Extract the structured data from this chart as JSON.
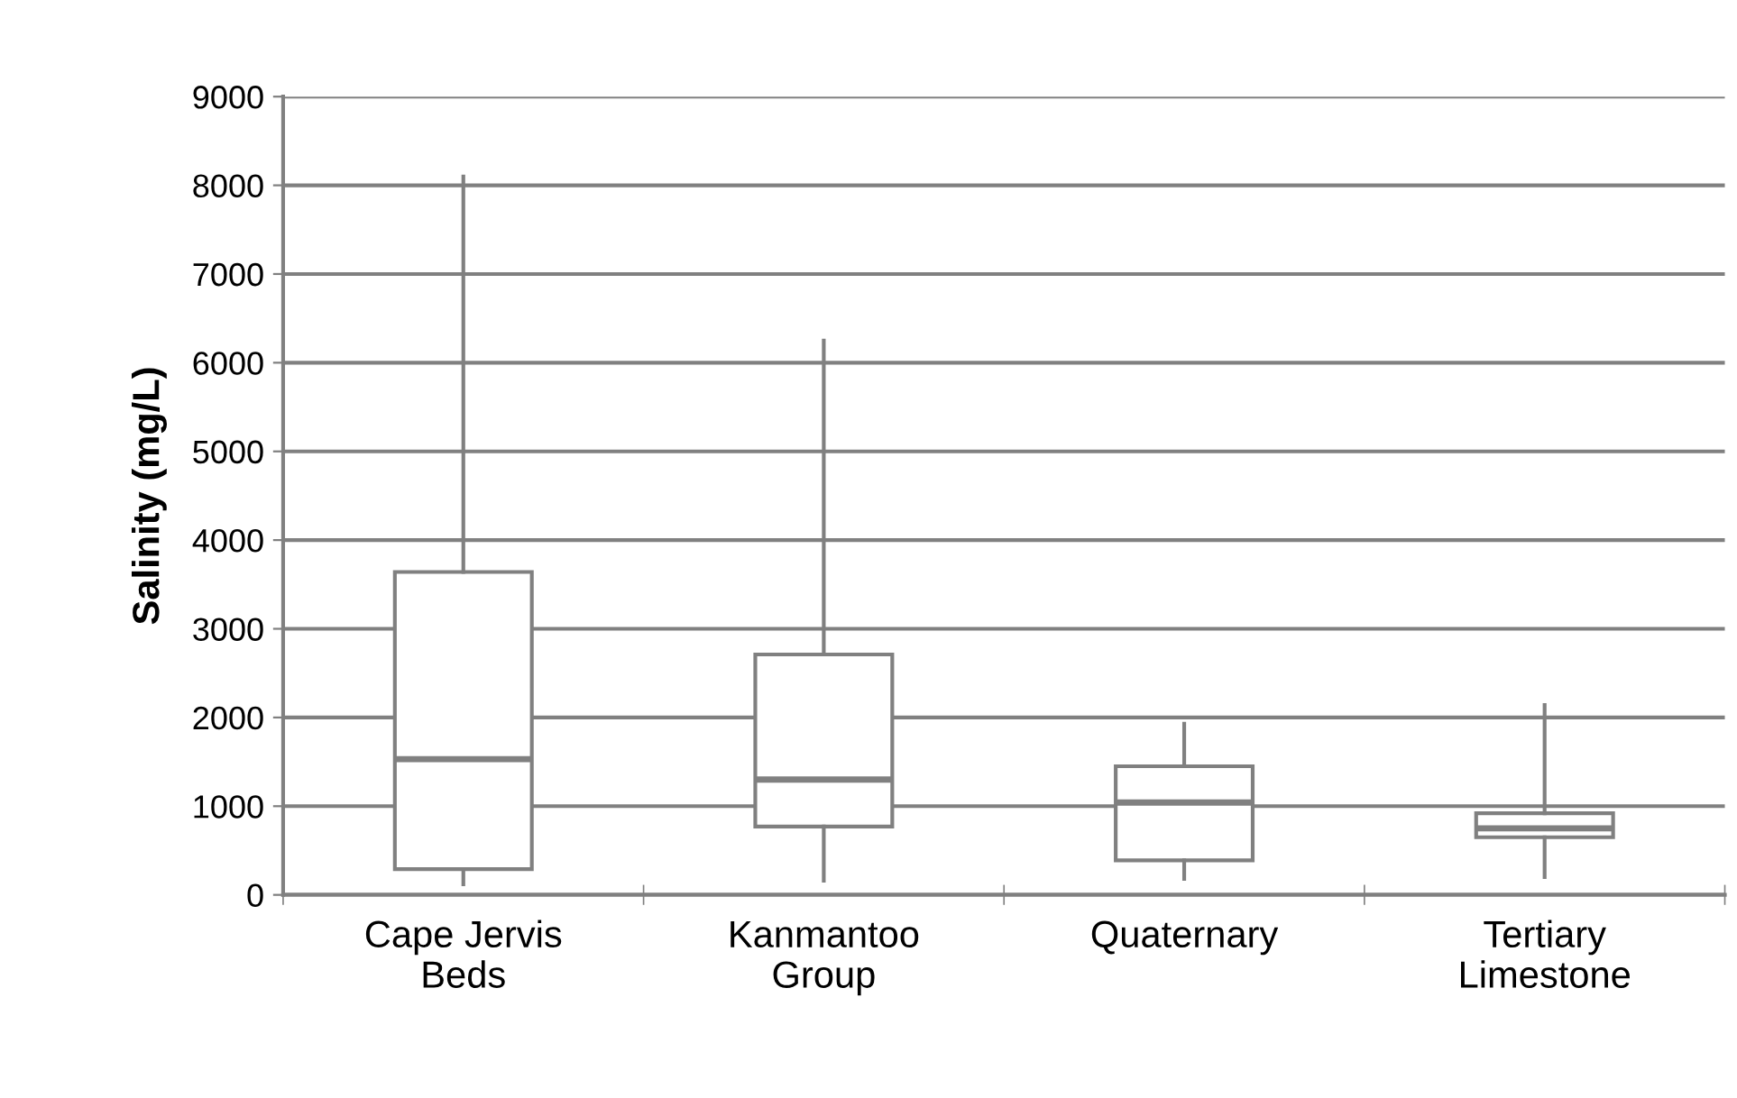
{
  "chart_data": {
    "type": "box",
    "ylabel": "Salinity (mg/L)",
    "categories": [
      "Cape Jervis\nBeds",
      "Kanmantoo\nGroup",
      "Quaternary",
      "Tertiary\nLimestone"
    ],
    "boxes": [
      {
        "low": 120,
        "q1": 290,
        "median": 1530,
        "q3": 3640,
        "high": 8100
      },
      {
        "low": 160,
        "q1": 770,
        "median": 1300,
        "q3": 2710,
        "high": 6250
      },
      {
        "low": 180,
        "q1": 390,
        "median": 1040,
        "q3": 1450,
        "high": 1930
      },
      {
        "low": 200,
        "q1": 650,
        "median": 750,
        "q3": 920,
        "high": 2140
      }
    ],
    "color": "#808080",
    "ylim": [
      0,
      9000
    ],
    "yticks": [
      0,
      1000,
      2000,
      3000,
      4000,
      5000,
      6000,
      7000,
      8000,
      9000
    ],
    "grid": "y"
  }
}
